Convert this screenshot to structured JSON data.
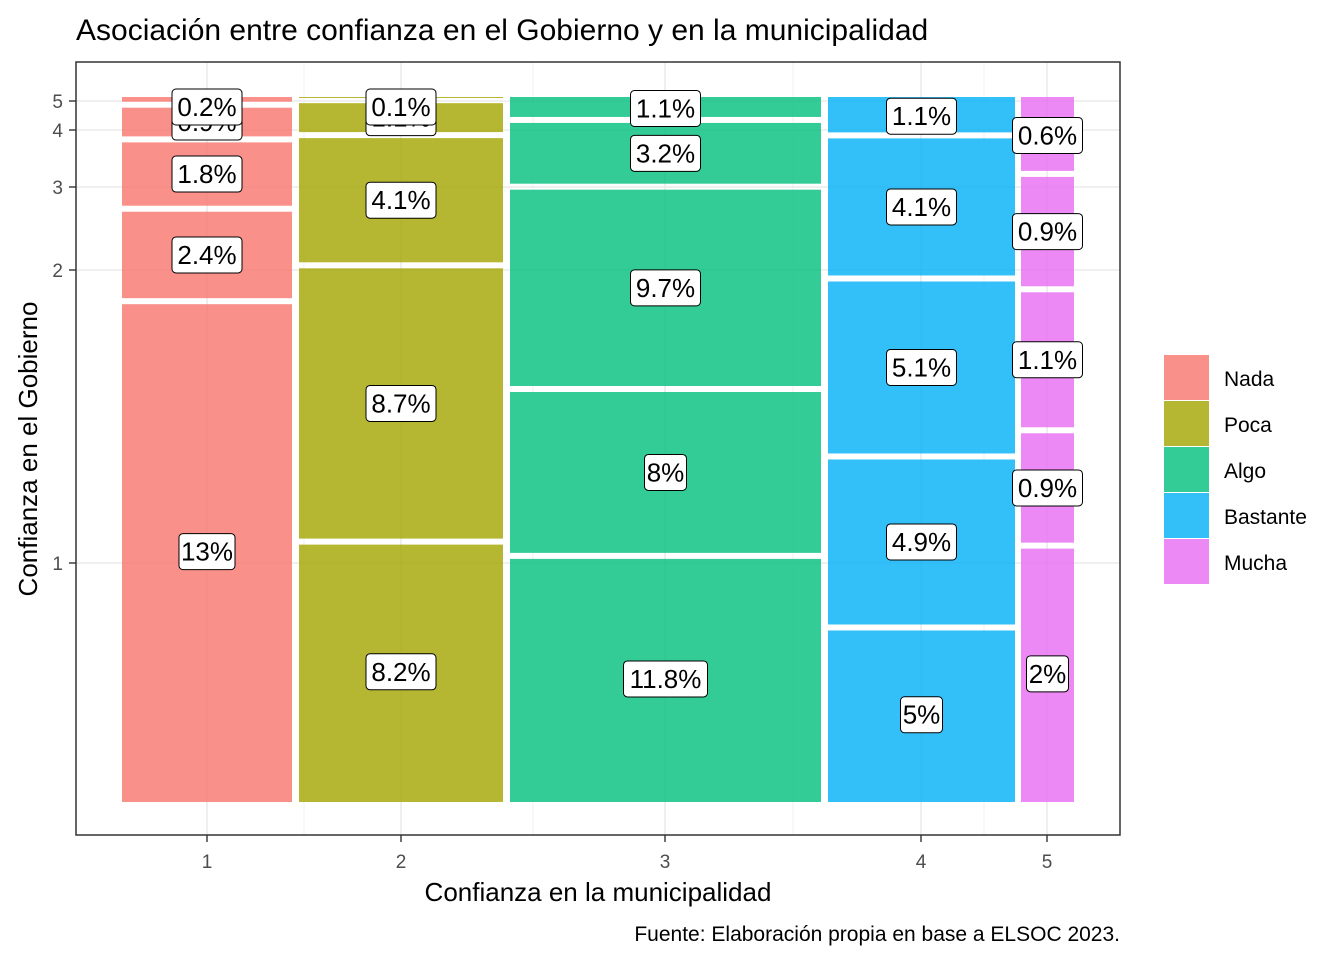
{
  "chart_data": {
    "type": "mosaic",
    "title": "Asociación entre confianza en el Gobierno y en la municipalidad",
    "xlabel": "Confianza en la municipalidad",
    "ylabel": "Confianza en el Gobierno",
    "caption": "Fuente: Elaboración propia en base a ELSOC 2023.",
    "x_ticks": [
      "1",
      "2",
      "3",
      "4",
      "5"
    ],
    "y_ticks": [
      "1",
      "2",
      "3",
      "4",
      "5"
    ],
    "legend_title": "",
    "legend_position": "right",
    "grid": true,
    "categories": [
      "Nada",
      "Poca",
      "Algo",
      "Bastante",
      "Mucha"
    ],
    "colors": {
      "Nada": "#f8766d",
      "Poca": "#a3a500",
      "Algo": "#00bf7d",
      "Bastante": "#00b0f6",
      "Mucha": "#e76bf3"
    },
    "columns": [
      {
        "x": "1",
        "fill": "Nada",
        "percents": [
          13,
          2.4,
          1.8,
          0.9,
          0.2
        ],
        "labels": [
          "13%",
          "2.4%",
          "1.8%",
          "0.9%",
          "0.2%"
        ]
      },
      {
        "x": "2",
        "fill": "Poca",
        "percents": [
          8.2,
          8.7,
          4.1,
          1.1,
          0.1
        ],
        "labels": [
          "8.2%",
          "8.7%",
          "4.1%",
          "1.1%",
          "0.1%"
        ]
      },
      {
        "x": "3",
        "fill": "Algo",
        "percents": [
          11.8,
          8,
          9.7,
          3.2,
          1.1
        ],
        "labels": [
          "11.8%",
          "8%",
          "9.7%",
          "3.2%",
          "1.1%"
        ]
      },
      {
        "x": "4",
        "fill": "Bastante",
        "percents": [
          5,
          4.9,
          5.1,
          4.1,
          1.1
        ],
        "labels": [
          "5%",
          "4.9%",
          "5.1%",
          "4.1%",
          "1.1%"
        ]
      },
      {
        "x": "5",
        "fill": "Mucha",
        "percents": [
          2,
          0.9,
          1.1,
          0.9,
          0.6
        ],
        "labels": [
          "2%",
          "0.9%",
          "1.1%",
          "0.9%",
          "0.6%"
        ]
      }
    ]
  }
}
